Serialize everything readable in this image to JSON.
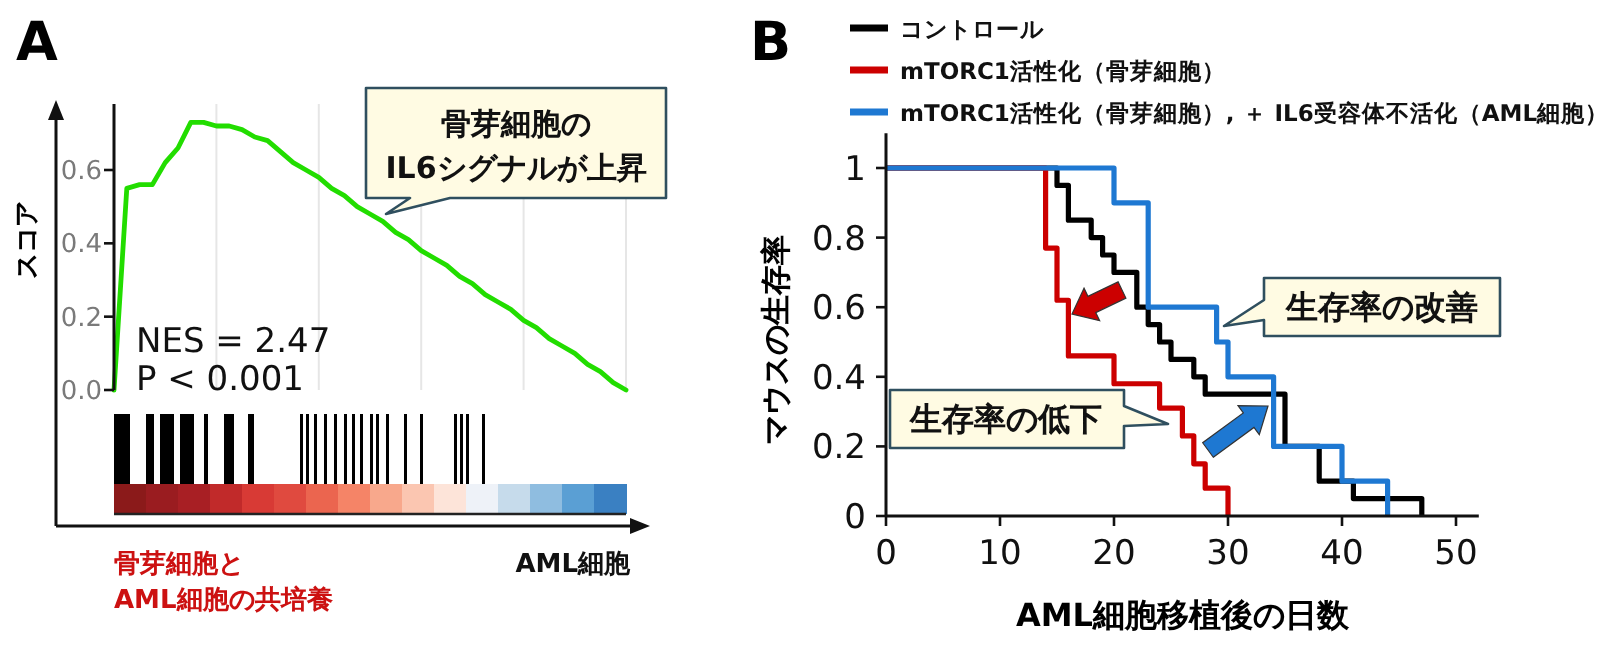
{
  "chart_data": [
    {
      "type": "line",
      "title": "A",
      "ylabel": "スコア",
      "tick_labels": "y",
      "grid": "x",
      "categories": [
        null,
        null,
        null,
        null,
        null,
        null,
        null,
        null,
        null,
        null,
        null,
        null,
        null,
        null,
        null,
        null,
        null,
        null,
        null,
        null,
        null,
        null,
        null,
        null,
        null,
        null,
        null,
        null,
        null,
        null,
        null,
        null,
        null,
        null,
        null,
        null,
        null,
        null,
        null,
        null,
        null
      ],
      "series": [
        {
          "color": "#22dd00",
          "values": [
            0,
            0.55,
            0.56,
            0.56,
            0.62,
            0.66,
            0.73,
            0.73,
            0.72,
            0.72,
            0.71,
            0.69,
            0.68,
            0.65,
            0.62,
            0.6,
            0.58,
            0.55,
            0.53,
            0.5,
            0.48,
            0.46,
            0.43,
            0.41,
            0.38,
            0.36,
            0.34,
            0.31,
            0.29,
            0.26,
            0.24,
            0.22,
            0.19,
            0.17,
            0.14,
            0.12,
            0.1,
            0.07,
            0.05,
            0.02,
            0
          ]
        }
      ],
      "ylim": [
        0,
        0.78
      ],
      "yticks": [
        {
          "value": 0,
          "label": "0.0"
        },
        {
          "value": 0.2,
          "label": "0.2"
        },
        {
          "value": 0.4,
          "label": "0.4"
        },
        {
          "value": 0.6,
          "label": "0.6"
        }
      ],
      "annotations": [
        "NES = 2.47",
        "P < 0.001",
        "骨芽細胞の",
        "IL6シグナルが上昇",
        "骨芽細胞と",
        "AML細胞の共培養",
        "AML細胞"
      ]
    },
    {
      "type": "step",
      "title": "B",
      "xlabel": "AML細胞移植後の日数",
      "ylabel": "マウスの生存率",
      "legend": "top",
      "xlim": [
        0,
        52
      ],
      "xticks": [
        0,
        10,
        20,
        30,
        40,
        50
      ],
      "ylim": [
        0,
        1.1
      ],
      "yticks": [
        0,
        0.2,
        0.4,
        0.6,
        0.8,
        1
      ],
      "series": [
        {
          "name": "コントロール",
          "color": "#000000",
          "x": [
            0,
            15,
            16,
            18,
            19,
            20,
            22,
            23,
            24,
            25,
            27,
            28,
            35,
            38,
            41,
            47
          ],
          "values": [
            1,
            0.95,
            0.85,
            0.8,
            0.75,
            0.7,
            0.6,
            0.55,
            0.5,
            0.45,
            0.4,
            0.35,
            0.2,
            0.1,
            0.05,
            0
          ]
        },
        {
          "name": "mTORC1活性化（骨芽細胞）",
          "color": "#cc0000",
          "x": [
            0,
            14,
            15,
            16,
            20,
            24,
            26,
            27,
            28,
            30
          ],
          "values": [
            1,
            0.77,
            0.62,
            0.46,
            0.38,
            0.31,
            0.23,
            0.15,
            0.08,
            0
          ]
        },
        {
          "name": "mTORC1活性化（骨芽細胞）, ＋ IL6受容体不活化（AML細胞）",
          "color": "#1e78d2",
          "x": [
            0,
            20,
            23,
            29,
            30,
            34,
            40,
            44
          ],
          "values": [
            1,
            0.9,
            0.6,
            0.5,
            0.4,
            0.2,
            0.1,
            0
          ]
        }
      ],
      "annotations": [
        "生存率の改善",
        "生存率の低下"
      ]
    }
  ]
}
